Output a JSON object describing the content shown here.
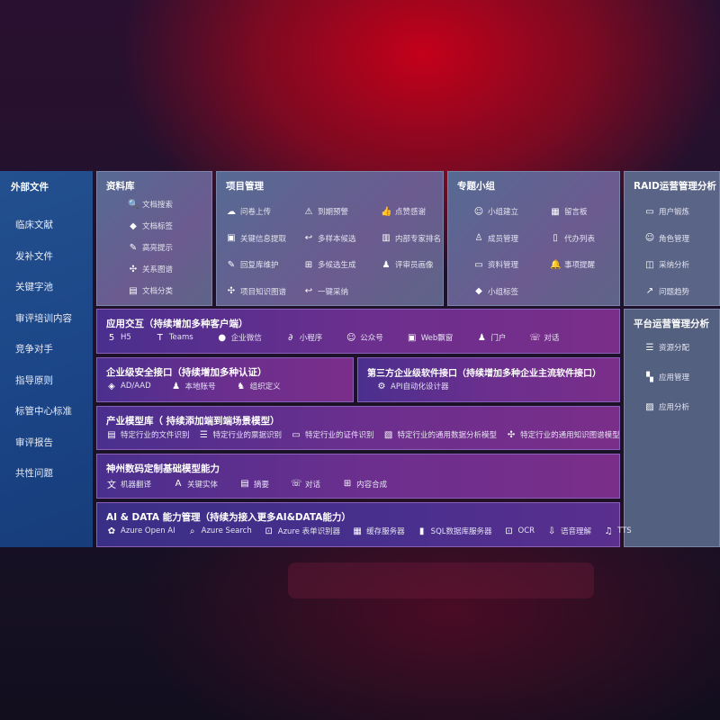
{
  "sidebar": {
    "title": "外部文件",
    "items": [
      "临床文献",
      "发补文件",
      "关键字池",
      "审评培训内容",
      "竞争对手",
      "指导原则",
      "标管中心标准",
      "审评报告",
      "共性问题"
    ]
  },
  "library": {
    "title": "资料库",
    "items": [
      {
        "icon": "doc-search-icon",
        "label": "文档搜索"
      },
      {
        "icon": "tag-icon",
        "label": "文档标签"
      },
      {
        "icon": "pen-icon",
        "label": "高亮提示"
      },
      {
        "icon": "graph-icon",
        "label": "关系图谱"
      },
      {
        "icon": "folder-icon",
        "label": "文档分类"
      }
    ]
  },
  "project": {
    "title": "项目管理",
    "items": [
      {
        "icon": "cloud-upload-icon",
        "label": "问卷上传"
      },
      {
        "icon": "alarm-icon",
        "label": "到期预警"
      },
      {
        "icon": "thumbs-up-icon",
        "label": "点赞感谢"
      },
      {
        "icon": "window-icon",
        "label": "关键信息提取"
      },
      {
        "icon": "reply-icon",
        "label": "多样本候选"
      },
      {
        "icon": "ranking-icon",
        "label": "内部专家排名"
      },
      {
        "icon": "edit-icon",
        "label": "回复库维护"
      },
      {
        "icon": "puzzle-icon",
        "label": "多候选生成"
      },
      {
        "icon": "user-icon",
        "label": "评审员画像"
      },
      {
        "icon": "graph-icon",
        "label": "项目知识图谱"
      },
      {
        "icon": "reply-icon",
        "label": "一键采纳"
      }
    ]
  },
  "group": {
    "title": "专题小组",
    "items": [
      {
        "icon": "users-icon",
        "label": "小组建立"
      },
      {
        "icon": "bbs-icon",
        "label": "留言板"
      },
      {
        "icon": "user-add-icon",
        "label": "成员管理"
      },
      {
        "icon": "clipboard-icon",
        "label": "代办列表"
      },
      {
        "icon": "archive-icon",
        "label": "资料管理"
      },
      {
        "icon": "bell-icon",
        "label": "事项提醒"
      },
      {
        "icon": "tag-icon",
        "label": "小组标签"
      }
    ]
  },
  "raid": {
    "title": "RAID运营管理分析",
    "items": [
      {
        "icon": "id-card-icon",
        "label": "用户锻炼"
      },
      {
        "icon": "users-icon",
        "label": "角色管理"
      },
      {
        "icon": "qa-icon",
        "label": "采纳分析"
      },
      {
        "icon": "trend-icon",
        "label": "问题趋势"
      }
    ]
  },
  "platform": {
    "title": "平台运营管理分析",
    "items": [
      {
        "icon": "list-check-icon",
        "label": "资源分配"
      },
      {
        "icon": "apps-icon",
        "label": "应用管理"
      },
      {
        "icon": "chart-icon",
        "label": "应用分析"
      }
    ]
  },
  "app": {
    "title": "应用交互（持续增加多种客户端）",
    "items": [
      {
        "icon": "html5-icon",
        "label": "H5"
      },
      {
        "icon": "teams-icon",
        "label": "Teams"
      },
      {
        "icon": "wechat-icon",
        "label": "企业微信"
      },
      {
        "icon": "miniapp-icon",
        "label": "小程序"
      },
      {
        "icon": "users-icon",
        "label": "公众号"
      },
      {
        "icon": "window-icon",
        "label": "Web飘窗"
      },
      {
        "icon": "portal-icon",
        "label": "门户"
      },
      {
        "icon": "chat-icon",
        "label": "对话"
      }
    ]
  },
  "security": {
    "title": "企业级安全接口（持续增加多种认证）",
    "items": [
      {
        "icon": "ad-icon",
        "label": "AD/AAD"
      },
      {
        "icon": "account-icon",
        "label": "本地账号"
      },
      {
        "icon": "org-icon",
        "label": "组织定义"
      }
    ]
  },
  "thirdparty": {
    "title": "第三方企业级软件接口（持续增加多种企业主流软件接口）",
    "items": [
      {
        "icon": "gear-icon",
        "label": "API自动化设计器"
      }
    ]
  },
  "industry": {
    "title": "产业模型库（ 持续添加端到端场景模型）",
    "items": [
      {
        "icon": "file-icon",
        "label": "特定行业的文件识别"
      },
      {
        "icon": "receipt-icon",
        "label": "特定行业的票据识别"
      },
      {
        "icon": "id-card-icon",
        "label": "特定行业的证件识别"
      },
      {
        "icon": "image-icon",
        "label": "特定行业的通用数据分析模型"
      },
      {
        "icon": "graph-icon",
        "label": "特定行业的通用知识图谱模型"
      }
    ]
  },
  "base": {
    "title": "神州数码定制基础模型能力",
    "items": [
      {
        "icon": "translate-icon",
        "label": "机器翻译"
      },
      {
        "icon": "entity-icon",
        "label": "关键实体"
      },
      {
        "icon": "summary-icon",
        "label": "摘要"
      },
      {
        "icon": "chat-icon",
        "label": "对话"
      },
      {
        "icon": "puzzle-icon",
        "label": "内容合成"
      }
    ]
  },
  "ai": {
    "title": "AI & DATA 能力管理（持续为接入更多AI&DATA能力）",
    "items": [
      {
        "icon": "openai-icon",
        "label": "Azure Open AI"
      },
      {
        "icon": "search-icon",
        "label": "Azure Search"
      },
      {
        "icon": "form-icon",
        "label": "Azure 表单识别器"
      },
      {
        "icon": "cache-icon",
        "label": "缓存服务器"
      },
      {
        "icon": "database-icon",
        "label": "SQL数据库服务器"
      },
      {
        "icon": "ocr-icon",
        "label": "OCR"
      },
      {
        "icon": "speech-icon",
        "label": "语音理解"
      },
      {
        "icon": "tts-icon",
        "label": "TTS"
      }
    ]
  }
}
